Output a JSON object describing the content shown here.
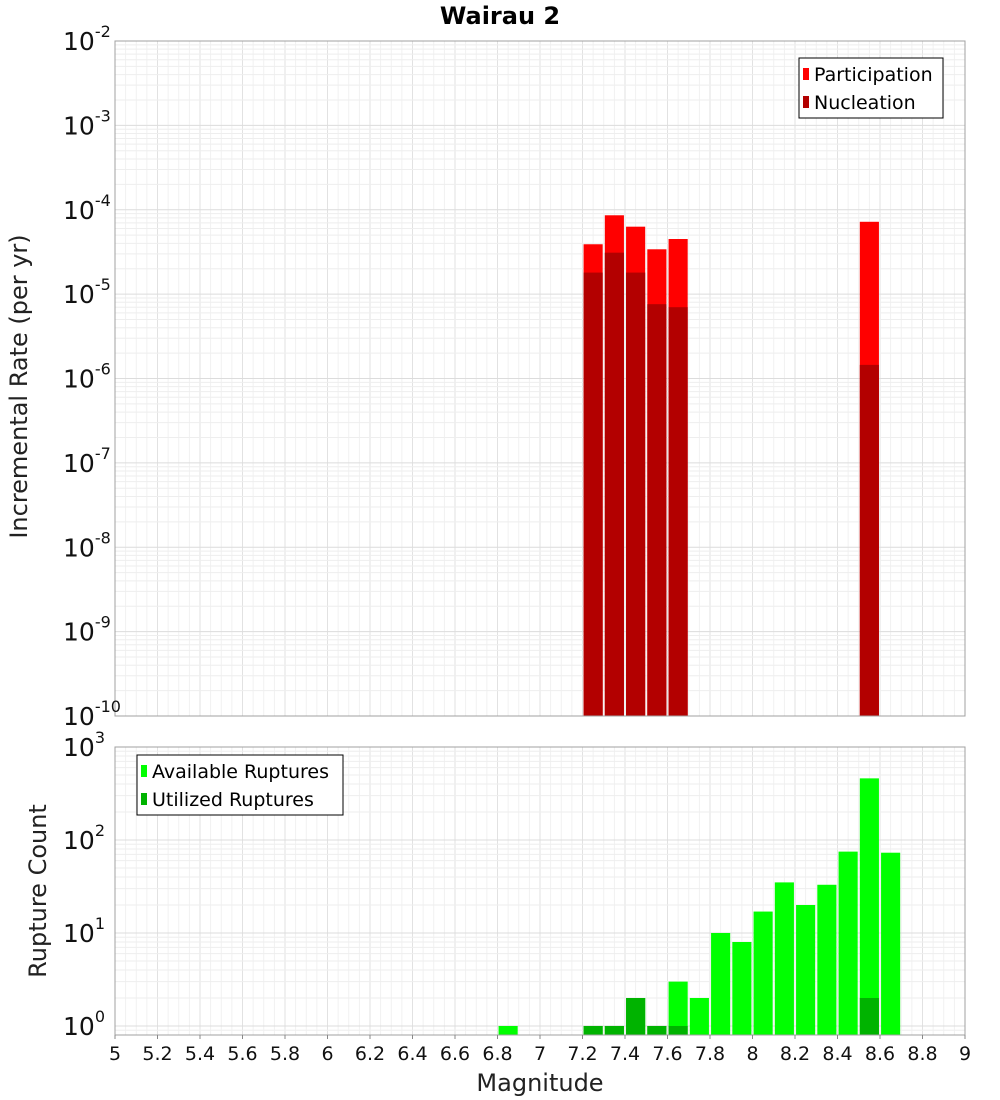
{
  "title": "Wairau 2",
  "chart_data": [
    {
      "type": "bar",
      "ylabel": "Incremental Rate (per yr)",
      "y_scale": "log",
      "ylim": [
        1e-10,
        0.01
      ],
      "xlim": [
        5,
        9
      ],
      "y_ticks": [
        {
          "base": "10",
          "exp": "-10",
          "value": 1e-10
        },
        {
          "base": "10",
          "exp": "-9",
          "value": 1e-09
        },
        {
          "base": "10",
          "exp": "-8",
          "value": 1e-08
        },
        {
          "base": "10",
          "exp": "-7",
          "value": 1e-07
        },
        {
          "base": "10",
          "exp": "-6",
          "value": 1e-06
        },
        {
          "base": "10",
          "exp": "-5",
          "value": 1e-05
        },
        {
          "base": "10",
          "exp": "-4",
          "value": 0.0001
        },
        {
          "base": "10",
          "exp": "-3",
          "value": 0.001
        },
        {
          "base": "10",
          "exp": "-2",
          "value": 0.01
        }
      ],
      "legend_position": "top-right",
      "bar_width": 0.09,
      "series": [
        {
          "name": "Participation",
          "color": "#ff0000",
          "x": [
            7.25,
            7.35,
            7.45,
            7.55,
            7.65,
            8.55
          ],
          "values": [
            3.9e-05,
            8.6e-05,
            6.3e-05,
            3.4e-05,
            4.5e-05,
            7.2e-05
          ]
        },
        {
          "name": "Nucleation",
          "color": "#b30000",
          "x": [
            7.25,
            7.35,
            7.45,
            7.55,
            7.65,
            8.55
          ],
          "values": [
            1.8e-05,
            3.1e-05,
            1.8e-05,
            7.6e-06,
            7e-06,
            1.45e-06
          ]
        }
      ]
    },
    {
      "type": "bar",
      "xlabel": "Magnitude",
      "ylabel": "Rupture Count",
      "y_scale": "log",
      "ylim": [
        0.8,
        1000
      ],
      "xlim": [
        5,
        9
      ],
      "y_ticks": [
        {
          "base": "10",
          "exp": "0",
          "value": 1
        },
        {
          "base": "10",
          "exp": "1",
          "value": 10
        },
        {
          "base": "10",
          "exp": "2",
          "value": 100
        },
        {
          "base": "10",
          "exp": "3",
          "value": 1000
        }
      ],
      "x_ticks": [
        "5",
        "5.2",
        "5.4",
        "5.6",
        "5.8",
        "6",
        "6.2",
        "6.4",
        "6.6",
        "6.8",
        "7",
        "7.2",
        "7.4",
        "7.6",
        "7.8",
        "8",
        "8.2",
        "8.4",
        "8.6",
        "8.8",
        "9"
      ],
      "legend_position": "top-left",
      "bar_width": 0.09,
      "series": [
        {
          "name": "Available Ruptures",
          "color": "#00ff00",
          "x": [
            6.85,
            7.25,
            7.35,
            7.45,
            7.55,
            7.65,
            7.75,
            7.85,
            7.95,
            8.05,
            8.15,
            8.25,
            8.35,
            8.45,
            8.55,
            8.65
          ],
          "values": [
            1,
            1,
            1,
            2,
            1,
            3,
            2,
            10,
            8,
            17,
            35,
            20,
            33,
            75,
            460,
            73
          ]
        },
        {
          "name": "Utilized Ruptures",
          "color": "#00b300",
          "x": [
            7.25,
            7.35,
            7.45,
            7.55,
            7.65,
            8.55
          ],
          "values": [
            1,
            1,
            2,
            1,
            1,
            2
          ]
        }
      ]
    }
  ]
}
